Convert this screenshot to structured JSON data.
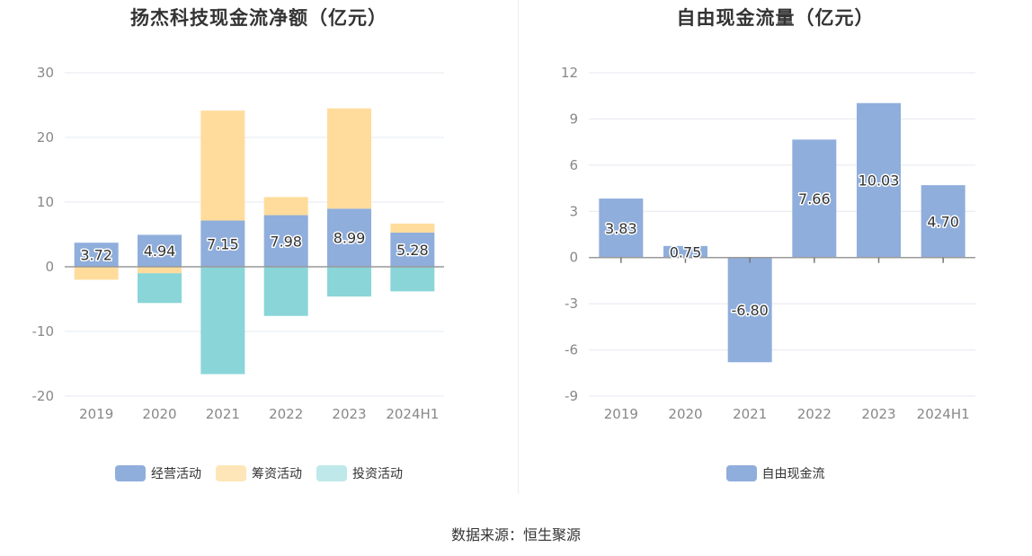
{
  "footer": {
    "source": "数据来源：恒生聚源"
  },
  "colors": {
    "operating": "#8faedc",
    "financing": "#ffdc9c",
    "investing": "#8ad5d8",
    "fcf": "#8faedc",
    "grid": "#e6e8f0",
    "axis_text": "#888888"
  },
  "chart_data": [
    {
      "type": "bar",
      "stacked": true,
      "title": "扬杰科技现金流净额（亿元）",
      "categories": [
        "2019",
        "2020",
        "2021",
        "2022",
        "2023",
        "2024H1"
      ],
      "ylim": [
        -20,
        30
      ],
      "yticks": [
        -20,
        -10,
        0,
        10,
        20,
        30
      ],
      "grid": true,
      "legend_position": "bottom",
      "series": [
        {
          "name": "经营活动",
          "color": "#8faedc",
          "values": [
            3.72,
            4.94,
            7.15,
            7.98,
            8.99,
            5.28
          ],
          "labels": [
            "3.72",
            "4.94",
            "7.15",
            "7.98",
            "8.99",
            "5.28"
          ]
        },
        {
          "name": "筹资活动",
          "color": "#ffdc9c",
          "values": [
            -2.0,
            -1.0,
            17.0,
            2.8,
            15.5,
            1.4
          ]
        },
        {
          "name": "投资活动",
          "color": "#bfe8ea",
          "bar_color": "#8ad5d8",
          "values": [
            0,
            -4.6,
            -16.6,
            -7.6,
            -4.6,
            -3.8
          ]
        }
      ]
    },
    {
      "type": "bar",
      "title": "自由现金流量（亿元）",
      "categories": [
        "2019",
        "2020",
        "2021",
        "2022",
        "2023",
        "2024H1"
      ],
      "ylim": [
        -9,
        12
      ],
      "yticks": [
        -9,
        -6,
        -3,
        0,
        3,
        6,
        9,
        12
      ],
      "grid": true,
      "legend_position": "bottom",
      "series": [
        {
          "name": "自由现金流",
          "color": "#8faedc",
          "values": [
            3.83,
            0.75,
            -6.8,
            7.66,
            10.03,
            4.7
          ],
          "labels": [
            "3.83",
            "0.75",
            "-6.80",
            "7.66",
            "10.03",
            "4.70"
          ]
        }
      ]
    }
  ]
}
